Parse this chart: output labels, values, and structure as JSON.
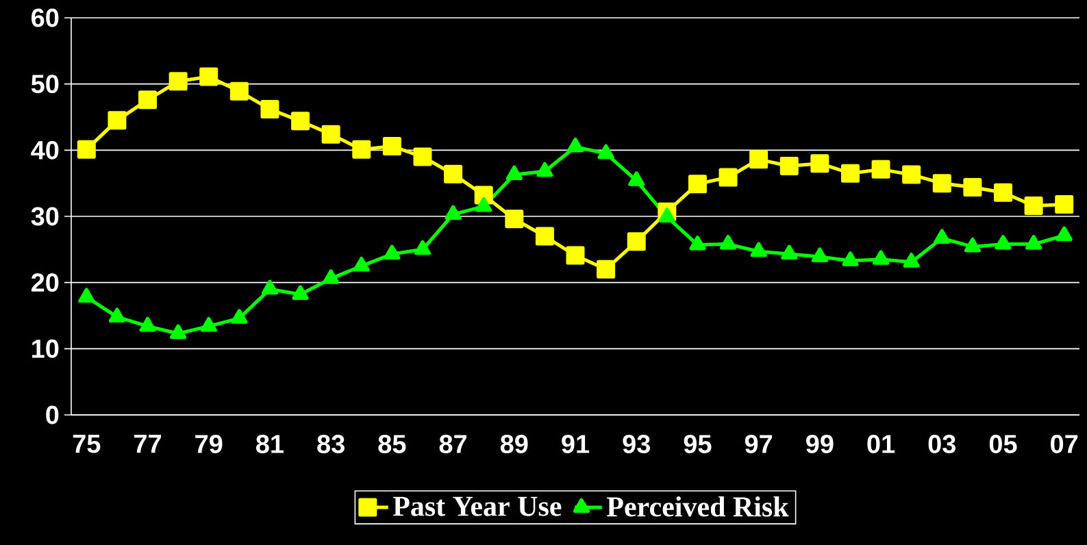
{
  "chart_data": {
    "type": "line",
    "categories": [
      "75",
      null,
      "77",
      null,
      "79",
      null,
      "81",
      null,
      "83",
      null,
      "85",
      null,
      "87",
      null,
      "89",
      null,
      "91",
      null,
      "93",
      null,
      "95",
      null,
      "97",
      null,
      "99",
      null,
      "01",
      null,
      "03",
      null,
      "05",
      null,
      "07"
    ],
    "series": [
      {
        "name": "Past Year Use",
        "color": "#ffff00",
        "marker": "square",
        "values": [
          40.1,
          44.5,
          47.6,
          50.4,
          51.1,
          48.9,
          46.2,
          44.4,
          42.4,
          40.1,
          40.6,
          39.0,
          36.4,
          33.2,
          29.6,
          27.0,
          24.1,
          22.0,
          26.2,
          30.7,
          34.9,
          35.9,
          38.6,
          37.6,
          38.0,
          36.5,
          37.1,
          36.3,
          35.0,
          34.4,
          33.6,
          31.6,
          31.8
        ]
      },
      {
        "name": "Perceived Risk",
        "color": "#00ff00",
        "marker": "triangle",
        "values": [
          17.8,
          14.8,
          13.4,
          12.3,
          13.4,
          14.6,
          19.0,
          18.2,
          20.6,
          22.5,
          24.3,
          25.0,
          30.3,
          31.5,
          36.3,
          36.8,
          40.5,
          39.5,
          35.4,
          29.9,
          25.7,
          25.8,
          24.7,
          24.3,
          23.9,
          23.3,
          23.5,
          23.1,
          26.7,
          25.4,
          25.8,
          25.8,
          27.1
        ]
      }
    ],
    "ylim": [
      0,
      60
    ],
    "yticks": [
      0,
      10,
      20,
      30,
      40,
      50,
      60
    ],
    "grid": "y",
    "legend": "bottom"
  }
}
